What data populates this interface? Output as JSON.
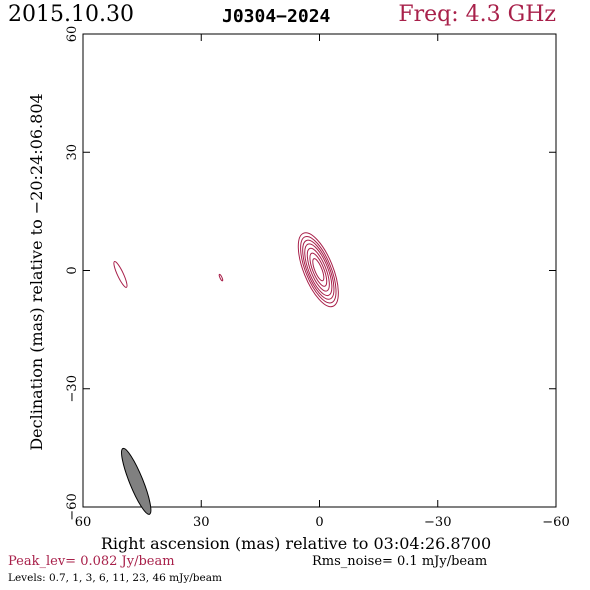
{
  "header": {
    "date": "2015.10.30",
    "source": "J0304−2024",
    "freq": "Freq: 4.3 GHz"
  },
  "footer": {
    "peak": "Peak_lev=  0.082 Jy/beam",
    "rms": "Rms_noise=  0.1 mJy/beam",
    "levels": "Levels: 0.7,   1,   3,   6,   11,   23,   46 mJy/beam"
  },
  "chart_data": {
    "type": "contour",
    "xlabel": "Right ascension (mas) relative to 03:04:26.8700",
    "ylabel": "Declination (mas) relative to −20:24:06.804",
    "xlim": [
      60,
      -60
    ],
    "ylim": [
      -60,
      60
    ],
    "x_ticks": [
      60,
      30,
      0,
      -30,
      -60
    ],
    "x_tick_labels": [
      "60",
      "30",
      "0",
      "−30",
      "−60"
    ],
    "y_ticks": [
      -60,
      -30,
      0,
      30,
      60
    ],
    "y_tick_labels": [
      "−60",
      "−30",
      "0",
      "30",
      "60"
    ],
    "contour_color": "#a8204a",
    "contour_levels_mJy": [
      0.7,
      1,
      3,
      6,
      11,
      23,
      46
    ],
    "components": [
      {
        "name": "core",
        "x": 0.3,
        "y": 0.2,
        "rings": [
          {
            "a": 10.0,
            "b": 3.7,
            "pa": 22
          },
          {
            "a": 9.0,
            "b": 3.2,
            "pa": 22
          },
          {
            "a": 8.0,
            "b": 2.8,
            "pa": 22
          },
          {
            "a": 7.0,
            "b": 2.4,
            "pa": 22
          },
          {
            "a": 5.8,
            "b": 1.9,
            "pa": 22
          },
          {
            "a": 4.5,
            "b": 1.4,
            "pa": 22
          },
          {
            "a": 3.0,
            "b": 0.9,
            "pa": 22
          }
        ]
      },
      {
        "name": "west-feature",
        "x": 50.5,
        "y": -1.0,
        "rings": [
          {
            "a": 3.6,
            "b": 0.75,
            "pa": 25
          }
        ]
      },
      {
        "name": "mid-feature",
        "x": 25.0,
        "y": -1.8,
        "rings": [
          {
            "a": 0.9,
            "b": 0.25,
            "pa": 25
          }
        ]
      }
    ],
    "beam": {
      "x": 46.5,
      "y": -53.5,
      "major": 9.0,
      "minor": 1.7,
      "pa": 22,
      "fill": "#808080"
    }
  }
}
